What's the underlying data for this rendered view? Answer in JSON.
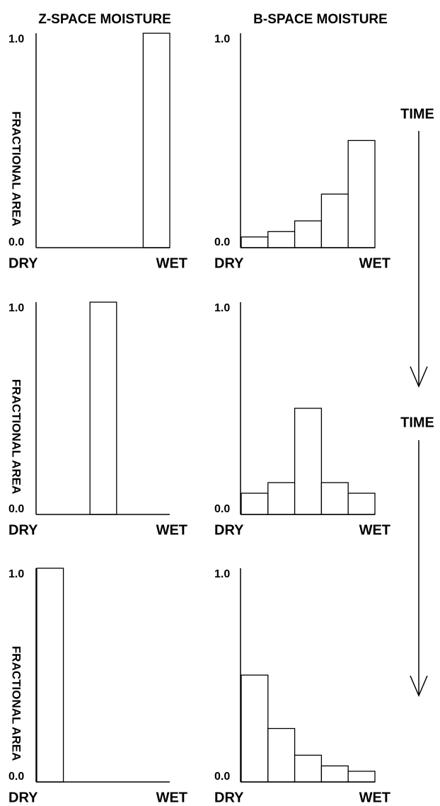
{
  "chart_data": [
    {
      "type": "bar",
      "title": "Z-SPACE MOISTURE",
      "ylabel": "FRACTIONAL AREA",
      "x_start_label": "DRY",
      "x_end_label": "WET",
      "values": [
        0,
        0,
        0,
        0,
        1.0
      ],
      "color": "#ffffff",
      "ylim": [
        0,
        1
      ],
      "yticks": [
        {
          "value": 1,
          "label": "1.0"
        },
        {
          "value": 0,
          "label": "0.0"
        }
      ]
    },
    {
      "type": "bar",
      "title": "B-SPACE MOISTURE",
      "x_start_label": "DRY",
      "x_end_label": "WET",
      "values": [
        0.05,
        0.075,
        0.125,
        0.25,
        0.5
      ],
      "color": "#ffffff",
      "ylim": [
        0,
        1
      ],
      "yticks": [
        {
          "value": 1,
          "label": "1.0"
        },
        {
          "value": 0,
          "label": "0.0"
        }
      ]
    },
    {
      "type": "bar",
      "ylabel": "FRACTIONAL AREA",
      "x_start_label": "DRY",
      "x_end_label": "WET",
      "values": [
        0,
        0,
        1.0,
        0,
        0
      ],
      "color": "#ffffff",
      "ylim": [
        0,
        1
      ],
      "yticks": [
        {
          "value": 1,
          "label": "1.0"
        },
        {
          "value": 0,
          "label": "0.0"
        }
      ]
    },
    {
      "type": "bar",
      "x_start_label": "DRY",
      "x_end_label": "WET",
      "values": [
        0.1,
        0.15,
        0.5,
        0.15,
        0.1
      ],
      "color": "#ffffff",
      "ylim": [
        0,
        1
      ],
      "yticks": [
        {
          "value": 1,
          "label": "1.0"
        },
        {
          "value": 0,
          "label": "0.0"
        }
      ]
    },
    {
      "type": "bar",
      "ylabel": "FRACTIONAL AREA",
      "x_start_label": "DRY",
      "x_end_label": "WET",
      "values": [
        1.0,
        0,
        0,
        0,
        0
      ],
      "color": "#ffffff",
      "ylim": [
        0,
        1
      ],
      "yticks": [
        {
          "value": 1,
          "label": "1.0"
        },
        {
          "value": 0,
          "label": "0.0"
        }
      ]
    },
    {
      "type": "bar",
      "x_start_label": "DRY",
      "x_end_label": "WET",
      "values": [
        0.5,
        0.25,
        0.125,
        0.075,
        0.05
      ],
      "color": "#ffffff",
      "ylim": [
        0,
        1
      ],
      "yticks": [
        {
          "value": 1,
          "label": "1.0"
        },
        {
          "value": 0,
          "label": "0.0"
        }
      ]
    }
  ],
  "annotations": [
    "TIME",
    "TIME"
  ]
}
